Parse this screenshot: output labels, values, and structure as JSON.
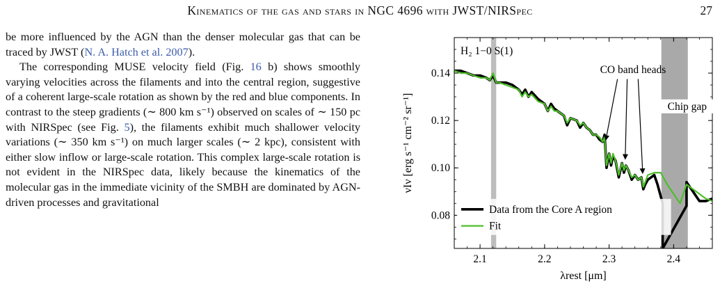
{
  "header": {
    "running_title": "Kinematics of the gas and stars in NGC 4696 with JWST/NIRSpec",
    "page_number": "27"
  },
  "body": {
    "p1": "be more influenced by the AGN than the denser molecular gas that can be traced by JWST (",
    "p1_cite": "N. A. Hatch et al. 2007",
    "p1_end": ").",
    "p2a": "The corresponding MUSE velocity field (Fig. ",
    "p2_fig": "16",
    "p2b": " b) shows smoothly varying velocities across the filaments and into the central region, suggestive of a coherent large-scale rotation as shown by the red and blue components. In contrast to the steep gradients (∼ 800 km s⁻¹) observed on scales of ∼ 150 pc with NIRSpec (see Fig. ",
    "p2_fig2": "5",
    "p2c": "), the filaments exhibit much shallower velocity variations (∼ 350 km s⁻¹) on much larger scales (∼ 2 kpc), consistent with either slow inflow or large-scale rotation. This complex large-scale rotation is not evident in the NIRSpec data, likely because the kinematics of the molecular gas in the immediate vicinity of the SMBH are dominated by AGN-driven processes and gravitational"
  },
  "chart_data": {
    "type": "line",
    "xlabel": "λrest [μm]",
    "ylabel": "νIν [erg s⁻¹ cm⁻² sr⁻¹]",
    "xlim": [
      2.06,
      2.46
    ],
    "ylim": [
      0.066,
      0.155
    ],
    "xticks": [
      "2.1",
      "2.2",
      "2.3",
      "2.4"
    ],
    "yticks": [
      "0.08",
      "0.10",
      "0.12",
      "0.14"
    ],
    "legend_location": "lower-left",
    "series": [
      {
        "name": "Data from the Core A region",
        "color": "#000000",
        "x": [
          2.06,
          2.07,
          2.08,
          2.09,
          2.1,
          2.11,
          2.115,
          2.12,
          2.125,
          2.13,
          2.14,
          2.15,
          2.16,
          2.165,
          2.17,
          2.175,
          2.18,
          2.19,
          2.2,
          2.205,
          2.21,
          2.215,
          2.22,
          2.23,
          2.235,
          2.24,
          2.25,
          2.255,
          2.26,
          2.265,
          2.27,
          2.275,
          2.28,
          2.285,
          2.29,
          2.293,
          2.296,
          2.3,
          2.303,
          2.306,
          2.31,
          2.315,
          2.32,
          2.323,
          2.326,
          2.33,
          2.335,
          2.34,
          2.345,
          2.35,
          2.353,
          2.356,
          2.36,
          2.365,
          2.37,
          2.375,
          2.38,
          2.383,
          2.383,
          2.42,
          2.42,
          2.425,
          2.43,
          2.44,
          2.45,
          2.46
        ],
        "y": [
          0.141,
          0.141,
          0.14,
          0.139,
          0.139,
          0.138,
          0.137,
          0.139,
          0.136,
          0.136,
          0.136,
          0.135,
          0.133,
          0.131,
          0.133,
          0.13,
          0.132,
          0.129,
          0.127,
          0.124,
          0.127,
          0.125,
          0.124,
          0.122,
          0.118,
          0.121,
          0.12,
          0.117,
          0.119,
          0.117,
          0.116,
          0.114,
          0.114,
          0.112,
          0.111,
          0.114,
          0.1,
          0.106,
          0.101,
          0.105,
          0.103,
          0.096,
          0.102,
          0.098,
          0.101,
          0.099,
          0.095,
          0.097,
          0.095,
          0.096,
          0.091,
          0.093,
          0.095,
          0.096,
          0.097,
          0.093,
          0.088,
          0.085,
          0.066,
          0.084,
          0.094,
          0.092,
          0.09,
          0.086,
          0.086,
          0.087
        ]
      },
      {
        "name": "Fit",
        "color": "#4dbf2a",
        "x": [
          2.06,
          2.07,
          2.08,
          2.09,
          2.1,
          2.11,
          2.115,
          2.12,
          2.125,
          2.13,
          2.14,
          2.15,
          2.16,
          2.165,
          2.17,
          2.175,
          2.18,
          2.19,
          2.2,
          2.205,
          2.21,
          2.215,
          2.22,
          2.23,
          2.235,
          2.24,
          2.25,
          2.255,
          2.26,
          2.265,
          2.27,
          2.275,
          2.28,
          2.285,
          2.29,
          2.293,
          2.296,
          2.3,
          2.303,
          2.306,
          2.31,
          2.315,
          2.32,
          2.323,
          2.326,
          2.33,
          2.335,
          2.34,
          2.345,
          2.35,
          2.353,
          2.356,
          2.36,
          2.37,
          2.38,
          2.39,
          2.4,
          2.41,
          2.42,
          2.43,
          2.44,
          2.45,
          2.46
        ],
        "y": [
          0.141,
          0.14,
          0.14,
          0.139,
          0.138,
          0.138,
          0.137,
          0.14,
          0.136,
          0.136,
          0.135,
          0.134,
          0.133,
          0.13,
          0.132,
          0.13,
          0.131,
          0.128,
          0.127,
          0.124,
          0.126,
          0.124,
          0.124,
          0.122,
          0.119,
          0.121,
          0.12,
          0.118,
          0.119,
          0.117,
          0.116,
          0.114,
          0.114,
          0.113,
          0.111,
          0.113,
          0.101,
          0.106,
          0.102,
          0.106,
          0.103,
          0.097,
          0.102,
          0.099,
          0.101,
          0.099,
          0.096,
          0.097,
          0.095,
          0.096,
          0.092,
          0.094,
          0.097,
          0.098,
          0.098,
          0.093,
          0.089,
          0.085,
          0.093,
          0.091,
          0.089,
          0.087,
          0.086
        ]
      }
    ],
    "shaded_regions": [
      {
        "label": "H2 line",
        "x": [
          2.117,
          2.125
        ],
        "color": "#bdbdbd"
      },
      {
        "label": "Chip gap",
        "x": [
          2.381,
          2.422
        ],
        "color": "#a9a9a9"
      }
    ],
    "annotations": {
      "h2_label": "H₂ 1−0 S(1)",
      "co_label": "CO band heads",
      "chip_label": "Chip gap",
      "co_arrow_targets": [
        [
          2.295,
          0.112
        ],
        [
          2.325,
          0.104
        ],
        [
          2.352,
          0.098
        ]
      ]
    }
  }
}
